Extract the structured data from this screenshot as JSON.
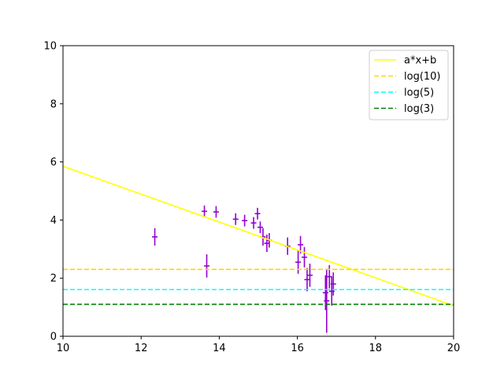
{
  "chart_data": {
    "type": "scatter",
    "title": "",
    "xlabel": "",
    "ylabel": "",
    "xlim": [
      10,
      20
    ],
    "ylim": [
      0,
      10
    ],
    "x_ticks": [
      "10",
      "12",
      "14",
      "16",
      "18",
      "20"
    ],
    "y_ticks": [
      "0",
      "2",
      "4",
      "6",
      "8",
      "10"
    ],
    "grid": false,
    "legend_position": "top-right",
    "errorbar_color": "#9400d3",
    "points": [
      {
        "x": 12.35,
        "y": 3.42,
        "yerr": 0.3
      },
      {
        "x": 13.62,
        "y": 4.3,
        "yerr": 0.2
      },
      {
        "x": 13.68,
        "y": 2.42,
        "yerr": 0.4
      },
      {
        "x": 13.92,
        "y": 4.28,
        "yerr": 0.2
      },
      {
        "x": 14.42,
        "y": 4.03,
        "yerr": 0.2
      },
      {
        "x": 14.65,
        "y": 3.98,
        "yerr": 0.2
      },
      {
        "x": 14.88,
        "y": 3.9,
        "yerr": 0.2
      },
      {
        "x": 14.98,
        "y": 4.22,
        "yerr": 0.2
      },
      {
        "x": 15.05,
        "y": 3.75,
        "yerr": 0.2
      },
      {
        "x": 15.12,
        "y": 3.42,
        "yerr": 0.3
      },
      {
        "x": 15.22,
        "y": 3.2,
        "yerr": 0.3
      },
      {
        "x": 15.28,
        "y": 3.3,
        "yerr": 0.25
      },
      {
        "x": 15.75,
        "y": 3.1,
        "yerr": 0.3
      },
      {
        "x": 16.02,
        "y": 2.55,
        "yerr": 0.4
      },
      {
        "x": 16.08,
        "y": 3.15,
        "yerr": 0.3
      },
      {
        "x": 16.18,
        "y": 2.72,
        "yerr": 0.35
      },
      {
        "x": 16.25,
        "y": 1.95,
        "yerr": 0.4
      },
      {
        "x": 16.32,
        "y": 2.1,
        "yerr": 0.4
      },
      {
        "x": 16.72,
        "y": 1.5,
        "yerr": 0.6
      },
      {
        "x": 16.75,
        "y": 1.22,
        "yerr": 1.1
      },
      {
        "x": 16.82,
        "y": 2.05,
        "yerr": 0.4
      },
      {
        "x": 16.88,
        "y": 1.55,
        "yerr": 0.5
      },
      {
        "x": 16.92,
        "y": 1.8,
        "yerr": 0.4
      }
    ],
    "series": [
      {
        "name": "a*x+b",
        "type": "line",
        "style": "solid",
        "color": "#ffff00",
        "x": [
          10,
          20
        ],
        "y": [
          5.85,
          1.05
        ]
      },
      {
        "name": "log(10)",
        "type": "hline",
        "style": "dashed",
        "color": "#ffd700",
        "y": 2.3026
      },
      {
        "name": "log(5)",
        "type": "hline",
        "style": "dashed",
        "color": "#00ffff",
        "y": 1.6094
      },
      {
        "name": "log(3)",
        "type": "hline",
        "style": "dashed",
        "color": "#008000",
        "y": 1.0986
      }
    ]
  }
}
